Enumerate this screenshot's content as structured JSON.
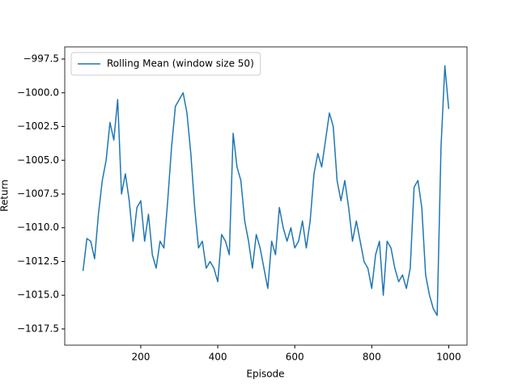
{
  "chart_data": {
    "type": "line",
    "xlabel": "Episode",
    "ylabel": "Return",
    "legend": "upper left",
    "series": [
      {
        "name": "Rolling Mean (window size 50)",
        "color": "#1f77b4",
        "x": [
          50,
          60,
          70,
          80,
          90,
          100,
          110,
          120,
          130,
          140,
          150,
          160,
          170,
          180,
          190,
          200,
          210,
          220,
          230,
          240,
          250,
          260,
          270,
          280,
          290,
          300,
          310,
          320,
          330,
          340,
          350,
          360,
          370,
          380,
          390,
          400,
          410,
          420,
          430,
          440,
          450,
          460,
          470,
          480,
          490,
          500,
          510,
          520,
          530,
          540,
          550,
          560,
          570,
          580,
          590,
          600,
          610,
          620,
          630,
          640,
          650,
          660,
          670,
          680,
          690,
          700,
          710,
          720,
          730,
          740,
          750,
          760,
          770,
          780,
          790,
          800,
          810,
          820,
          830,
          840,
          850,
          860,
          870,
          880,
          890,
          900,
          910,
          920,
          930,
          940,
          950,
          960,
          970,
          980,
          990,
          1000
        ],
        "values": [
          -1013.2,
          -1010.8,
          -1011.0,
          -1012.3,
          -1009.0,
          -1006.5,
          -1005.0,
          -1002.2,
          -1003.5,
          -1000.5,
          -1007.5,
          -1006.0,
          -1008.0,
          -1011.0,
          -1008.5,
          -1008.0,
          -1011.0,
          -1009.0,
          -1012.0,
          -1013.0,
          -1011.0,
          -1011.5,
          -1008.0,
          -1004.0,
          -1001.0,
          -1000.5,
          -1000.0,
          -1001.5,
          -1004.5,
          -1008.5,
          -1011.5,
          -1011.0,
          -1013.0,
          -1012.5,
          -1013.0,
          -1014.0,
          -1010.5,
          -1011.0,
          -1012.0,
          -1003.0,
          -1005.5,
          -1006.5,
          -1009.5,
          -1011.0,
          -1013.0,
          -1010.5,
          -1011.5,
          -1013.0,
          -1014.5,
          -1011.0,
          -1012.0,
          -1008.5,
          -1010.0,
          -1011.0,
          -1010.0,
          -1011.5,
          -1011.0,
          -1009.5,
          -1011.5,
          -1009.5,
          -1006.0,
          -1004.5,
          -1005.5,
          -1003.5,
          -1001.5,
          -1002.5,
          -1006.5,
          -1008.0,
          -1006.5,
          -1008.5,
          -1011.0,
          -1009.5,
          -1011.0,
          -1012.5,
          -1013.0,
          -1014.5,
          -1012.0,
          -1011.0,
          -1015.0,
          -1011.0,
          -1011.5,
          -1013.0,
          -1014.0,
          -1013.5,
          -1014.5,
          -1013.0,
          -1007.0,
          -1006.5,
          -1008.5,
          -1013.5,
          -1015.0,
          -1016.0,
          -1016.5,
          -1004.0,
          -998.0,
          -1001.2
        ]
      }
    ],
    "xlim": [
      2.5,
      1047.5
    ],
    "xticks": [
      200,
      400,
      600,
      800,
      1000
    ],
    "ylim": [
      -1018.7,
      -996.6
    ],
    "yticks": [
      {
        "value": -1017.5,
        "label": "−1017.5"
      },
      {
        "value": -1015,
        "label": "−1015.0"
      },
      {
        "value": -1012.5,
        "label": "−1012.5"
      },
      {
        "value": -1010,
        "label": "−1010.0"
      },
      {
        "value": -1007.5,
        "label": "−1007.5"
      },
      {
        "value": -1005,
        "label": "−1005.0"
      },
      {
        "value": -1002.5,
        "label": "−1002.5"
      },
      {
        "value": -1000,
        "label": "−1000.0"
      },
      {
        "value": -997.5,
        "label": "−997.5"
      }
    ]
  }
}
